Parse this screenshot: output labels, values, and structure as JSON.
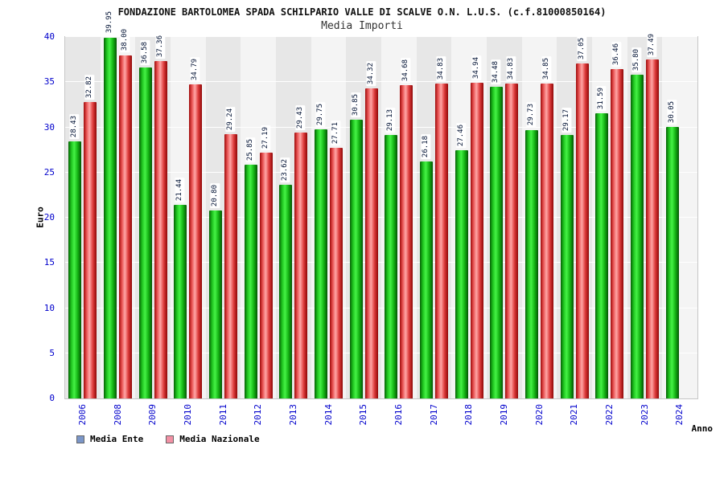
{
  "header": {
    "title": "FONDAZIONE BARTOLOMEA SPADA SCHILPARIO VALLE DI SCALVE O.N. L.U.S. (c.f.81000850164)",
    "subtitle": "Media Importi"
  },
  "chart_data": {
    "type": "bar",
    "title": "Media Importi",
    "xlabel": "Anno",
    "ylabel": "Euro",
    "ylim": [
      0,
      40
    ],
    "yticks": [
      0,
      5,
      10,
      15,
      20,
      25,
      30,
      35,
      40
    ],
    "grid": true,
    "legend_position": "bottom",
    "categories": [
      "2006",
      "2008",
      "2009",
      "2010",
      "2011",
      "2012",
      "2013",
      "2014",
      "2015",
      "2016",
      "2017",
      "2018",
      "2019",
      "2020",
      "2021",
      "2022",
      "2023",
      "2024"
    ],
    "series": [
      {
        "name": "Media Ente",
        "legend_color": "#7b96c8",
        "bar_color": "green",
        "values": [
          28.43,
          39.95,
          36.58,
          21.44,
          20.8,
          25.85,
          23.62,
          29.75,
          30.85,
          29.13,
          26.18,
          27.46,
          34.48,
          29.73,
          29.17,
          31.59,
          35.8,
          30.05
        ]
      },
      {
        "name": "Media Nazionale",
        "legend_color": "#f290a4",
        "bar_color": "red",
        "values": [
          32.82,
          38.0,
          37.36,
          34.79,
          29.24,
          27.19,
          29.43,
          27.71,
          34.32,
          34.68,
          34.83,
          34.94,
          34.83,
          34.85,
          37.05,
          36.46,
          37.49,
          null
        ]
      }
    ]
  }
}
